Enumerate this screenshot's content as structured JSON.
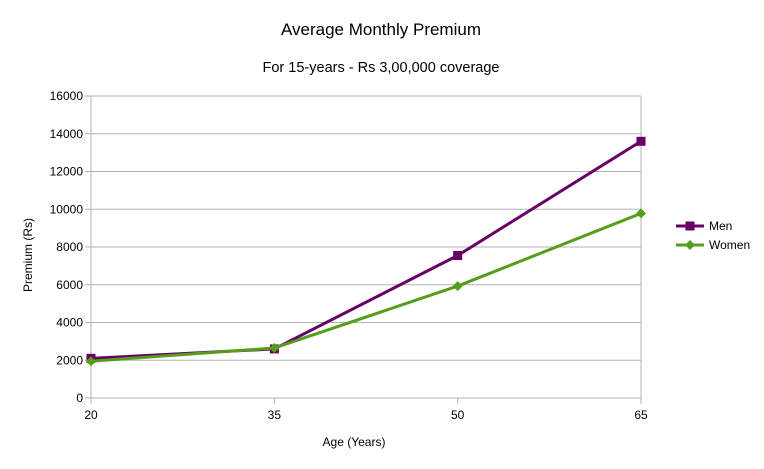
{
  "chart_data": {
    "type": "line",
    "title": "Average Monthly Premium",
    "subtitle": "For 15-years - Rs 3,00,000 coverage",
    "xlabel": "Age (Years)",
    "ylabel": "Premium (Rs)",
    "categories": [
      "20",
      "35",
      "50",
      "65"
    ],
    "ylim": [
      0,
      16000
    ],
    "yticks": [
      0,
      2000,
      4000,
      6000,
      8000,
      10000,
      12000,
      14000,
      16000
    ],
    "grid": true,
    "legend": "right",
    "series": [
      {
        "name": "Men",
        "values": [
          2100,
          2600,
          7550,
          13600
        ],
        "color": "#660066",
        "marker": "square"
      },
      {
        "name": "Women",
        "values": [
          1950,
          2650,
          5930,
          9780
        ],
        "color": "#579d1c",
        "marker": "diamond"
      }
    ]
  }
}
